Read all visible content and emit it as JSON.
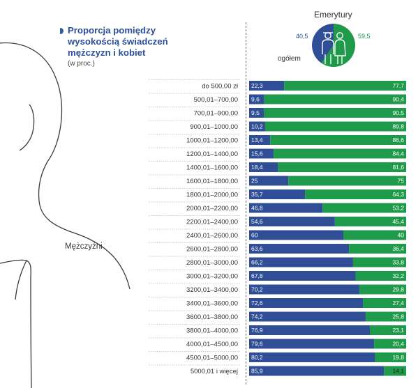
{
  "title": {
    "lines": [
      "Proporcja pomiędzy",
      "wysokością świadczeń",
      "mężczyzn i kobiet"
    ],
    "subtitle": "(w proc.)"
  },
  "men_label": "Mężczyźni",
  "emerytury": {
    "title": "Emerytury",
    "men_value": "40,5",
    "women_value": "59,5",
    "total_label": "ogółem"
  },
  "colors": {
    "men": "#2f4e96",
    "women": "#1f9a4a",
    "header_blue": "#2b4f9a",
    "silhouette": "#3a3a3a"
  },
  "icons": {
    "donut_center": "couple-icon",
    "figure": "man-silhouette"
  },
  "chart_data": {
    "type": "bar",
    "stacked": true,
    "orientation": "horizontal",
    "categories": [
      "do 500,00 zł",
      "500,01–700,00",
      "700,01–900,00",
      "900,01–1000,00",
      "1000,01–1200,00",
      "1200,01–1400,00",
      "1400,01–1600,00",
      "1600,01–1800,00",
      "1800,01–2000,00",
      "2000,01–2200,00",
      "2200,01–2400,00",
      "2400,01–2600,00",
      "2600,01–2800,00",
      "2800,01–3000,00",
      "3000,01–3200,00",
      "3200,01–3400,00",
      "3400,01–3600,00",
      "3600,01–3800,00",
      "3800,01–4000,00",
      "4000,01–4500,00",
      "4500,01–5000,00",
      "5000,01 i więcej"
    ],
    "series": [
      {
        "values": [
          22.3,
          9.6,
          9.5,
          10.2,
          13.4,
          15.6,
          18.4,
          25,
          35.7,
          46.8,
          54.6,
          60,
          63.6,
          66.2,
          67.8,
          70.2,
          72.6,
          74.2,
          76.9,
          79.6,
          80.2,
          85.9
        ],
        "labels": [
          "22,3",
          "9,6",
          "9,5",
          "10,2",
          "13,4",
          "15,6",
          "18,4",
          "25",
          "35,7",
          "46,8",
          "54,6",
          "60",
          "63,6",
          "66,2",
          "67,8",
          "70,2",
          "72,6",
          "74,2",
          "76,9",
          "79,6",
          "80,2",
          "85,9"
        ]
      },
      {
        "values": [
          77.7,
          90.4,
          90.5,
          89.8,
          86.6,
          84.4,
          81.6,
          75,
          64.3,
          53.2,
          45.4,
          40,
          36.4,
          33.8,
          32.2,
          29.8,
          27.4,
          25.8,
          23.1,
          20.4,
          19.8,
          14.1
        ],
        "labels": [
          "77,7",
          "90,4",
          "90,5",
          "89,8",
          "86,6",
          "84,4",
          "81,6",
          "75",
          "64,3",
          "53,2",
          "45,4",
          "40",
          "36,4",
          "33,8",
          "32,2",
          "29,8",
          "27,4",
          "25,8",
          "23,1",
          "20,4",
          "19,8",
          "14,1"
        ]
      }
    ],
    "xlim": [
      0,
      100
    ]
  }
}
